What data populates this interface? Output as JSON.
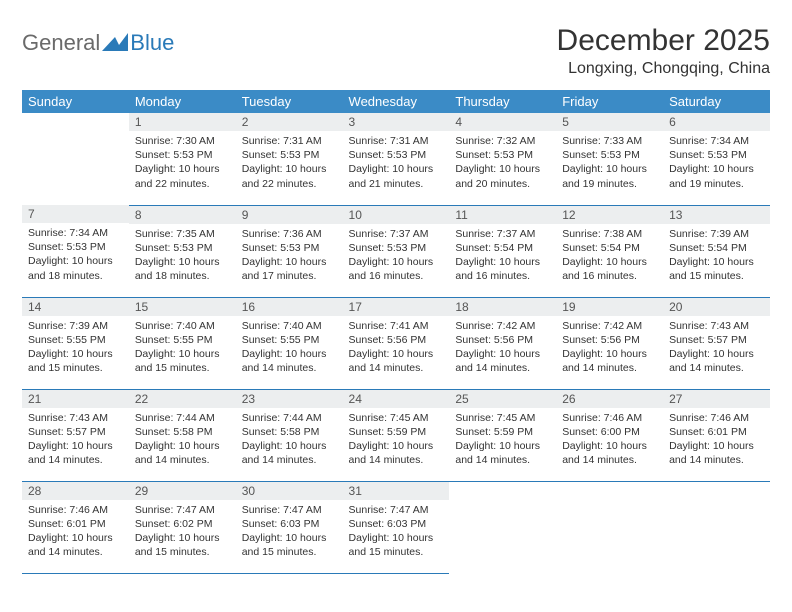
{
  "logo": {
    "general": "General",
    "blue": "Blue"
  },
  "title": "December 2025",
  "location": "Longxing, Chongqing, China",
  "colors": {
    "header_bg": "#3b8bc6",
    "header_text": "#ffffff",
    "daynum_bg": "#eceeef",
    "border": "#2a7ab8",
    "logo_gray": "#6a6a6a",
    "logo_blue": "#2a7ab8"
  },
  "weekdays": [
    "Sunday",
    "Monday",
    "Tuesday",
    "Wednesday",
    "Thursday",
    "Friday",
    "Saturday"
  ],
  "weeks": [
    [
      null,
      {
        "n": "1",
        "sr": "Sunrise: 7:30 AM",
        "ss": "Sunset: 5:53 PM",
        "dl": "Daylight: 10 hours and 22 minutes."
      },
      {
        "n": "2",
        "sr": "Sunrise: 7:31 AM",
        "ss": "Sunset: 5:53 PM",
        "dl": "Daylight: 10 hours and 22 minutes."
      },
      {
        "n": "3",
        "sr": "Sunrise: 7:31 AM",
        "ss": "Sunset: 5:53 PM",
        "dl": "Daylight: 10 hours and 21 minutes."
      },
      {
        "n": "4",
        "sr": "Sunrise: 7:32 AM",
        "ss": "Sunset: 5:53 PM",
        "dl": "Daylight: 10 hours and 20 minutes."
      },
      {
        "n": "5",
        "sr": "Sunrise: 7:33 AM",
        "ss": "Sunset: 5:53 PM",
        "dl": "Daylight: 10 hours and 19 minutes."
      },
      {
        "n": "6",
        "sr": "Sunrise: 7:34 AM",
        "ss": "Sunset: 5:53 PM",
        "dl": "Daylight: 10 hours and 19 minutes."
      }
    ],
    [
      {
        "n": "7",
        "sr": "Sunrise: 7:34 AM",
        "ss": "Sunset: 5:53 PM",
        "dl": "Daylight: 10 hours and 18 minutes."
      },
      {
        "n": "8",
        "sr": "Sunrise: 7:35 AM",
        "ss": "Sunset: 5:53 PM",
        "dl": "Daylight: 10 hours and 18 minutes."
      },
      {
        "n": "9",
        "sr": "Sunrise: 7:36 AM",
        "ss": "Sunset: 5:53 PM",
        "dl": "Daylight: 10 hours and 17 minutes."
      },
      {
        "n": "10",
        "sr": "Sunrise: 7:37 AM",
        "ss": "Sunset: 5:53 PM",
        "dl": "Daylight: 10 hours and 16 minutes."
      },
      {
        "n": "11",
        "sr": "Sunrise: 7:37 AM",
        "ss": "Sunset: 5:54 PM",
        "dl": "Daylight: 10 hours and 16 minutes."
      },
      {
        "n": "12",
        "sr": "Sunrise: 7:38 AM",
        "ss": "Sunset: 5:54 PM",
        "dl": "Daylight: 10 hours and 16 minutes."
      },
      {
        "n": "13",
        "sr": "Sunrise: 7:39 AM",
        "ss": "Sunset: 5:54 PM",
        "dl": "Daylight: 10 hours and 15 minutes."
      }
    ],
    [
      {
        "n": "14",
        "sr": "Sunrise: 7:39 AM",
        "ss": "Sunset: 5:55 PM",
        "dl": "Daylight: 10 hours and 15 minutes."
      },
      {
        "n": "15",
        "sr": "Sunrise: 7:40 AM",
        "ss": "Sunset: 5:55 PM",
        "dl": "Daylight: 10 hours and 15 minutes."
      },
      {
        "n": "16",
        "sr": "Sunrise: 7:40 AM",
        "ss": "Sunset: 5:55 PM",
        "dl": "Daylight: 10 hours and 14 minutes."
      },
      {
        "n": "17",
        "sr": "Sunrise: 7:41 AM",
        "ss": "Sunset: 5:56 PM",
        "dl": "Daylight: 10 hours and 14 minutes."
      },
      {
        "n": "18",
        "sr": "Sunrise: 7:42 AM",
        "ss": "Sunset: 5:56 PM",
        "dl": "Daylight: 10 hours and 14 minutes."
      },
      {
        "n": "19",
        "sr": "Sunrise: 7:42 AM",
        "ss": "Sunset: 5:56 PM",
        "dl": "Daylight: 10 hours and 14 minutes."
      },
      {
        "n": "20",
        "sr": "Sunrise: 7:43 AM",
        "ss": "Sunset: 5:57 PM",
        "dl": "Daylight: 10 hours and 14 minutes."
      }
    ],
    [
      {
        "n": "21",
        "sr": "Sunrise: 7:43 AM",
        "ss": "Sunset: 5:57 PM",
        "dl": "Daylight: 10 hours and 14 minutes."
      },
      {
        "n": "22",
        "sr": "Sunrise: 7:44 AM",
        "ss": "Sunset: 5:58 PM",
        "dl": "Daylight: 10 hours and 14 minutes."
      },
      {
        "n": "23",
        "sr": "Sunrise: 7:44 AM",
        "ss": "Sunset: 5:58 PM",
        "dl": "Daylight: 10 hours and 14 minutes."
      },
      {
        "n": "24",
        "sr": "Sunrise: 7:45 AM",
        "ss": "Sunset: 5:59 PM",
        "dl": "Daylight: 10 hours and 14 minutes."
      },
      {
        "n": "25",
        "sr": "Sunrise: 7:45 AM",
        "ss": "Sunset: 5:59 PM",
        "dl": "Daylight: 10 hours and 14 minutes."
      },
      {
        "n": "26",
        "sr": "Sunrise: 7:46 AM",
        "ss": "Sunset: 6:00 PM",
        "dl": "Daylight: 10 hours and 14 minutes."
      },
      {
        "n": "27",
        "sr": "Sunrise: 7:46 AM",
        "ss": "Sunset: 6:01 PM",
        "dl": "Daylight: 10 hours and 14 minutes."
      }
    ],
    [
      {
        "n": "28",
        "sr": "Sunrise: 7:46 AM",
        "ss": "Sunset: 6:01 PM",
        "dl": "Daylight: 10 hours and 14 minutes."
      },
      {
        "n": "29",
        "sr": "Sunrise: 7:47 AM",
        "ss": "Sunset: 6:02 PM",
        "dl": "Daylight: 10 hours and 15 minutes."
      },
      {
        "n": "30",
        "sr": "Sunrise: 7:47 AM",
        "ss": "Sunset: 6:03 PM",
        "dl": "Daylight: 10 hours and 15 minutes."
      },
      {
        "n": "31",
        "sr": "Sunrise: 7:47 AM",
        "ss": "Sunset: 6:03 PM",
        "dl": "Daylight: 10 hours and 15 minutes."
      },
      null,
      null,
      null
    ]
  ]
}
